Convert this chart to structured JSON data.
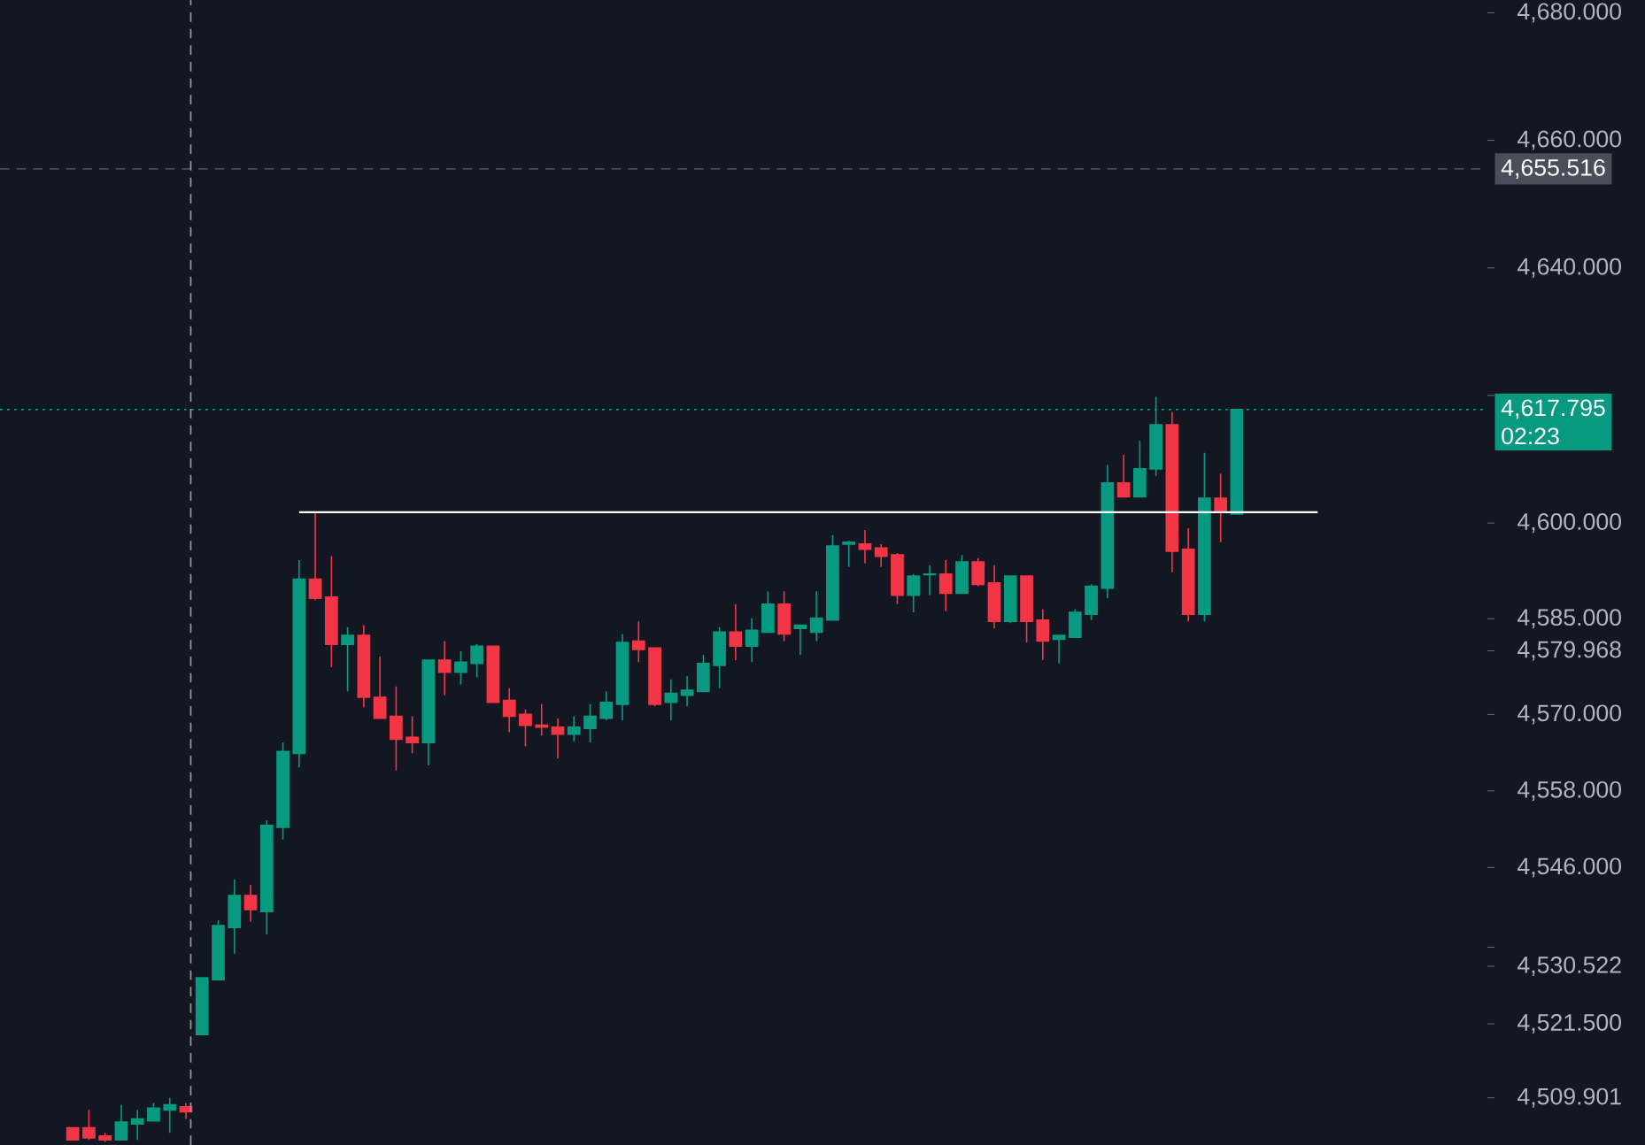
{
  "chart_data": {
    "type": "candlestick",
    "categories": [
      null,
      null,
      null,
      null,
      null,
      null,
      null,
      null,
      null,
      null,
      null,
      null,
      null,
      null,
      null,
      null,
      null,
      null,
      null,
      null,
      null,
      null,
      null,
      null,
      null,
      null,
      null,
      null,
      null,
      null,
      null,
      null,
      null,
      null,
      null,
      null,
      null,
      null,
      null,
      null,
      null,
      null,
      null,
      null,
      null,
      null,
      null,
      null,
      null,
      null,
      null,
      null,
      null,
      null,
      null,
      null,
      null,
      null,
      null,
      null,
      null,
      null,
      null,
      null,
      null,
      null,
      null,
      null,
      null,
      null,
      null,
      null,
      null,
      null,
      null,
      null,
      null,
      null,
      null,
      null,
      null,
      null,
      null,
      null,
      null,
      null,
      null,
      null,
      null,
      null,
      null,
      null
    ],
    "ohlc": [
      null,
      null,
      null,
      null,
      [
        4505.2,
        4505.2,
        4503.3,
        4503.3
      ],
      [
        4505.2,
        4508.0,
        4503.3,
        4503.6
      ],
      [
        4503.9,
        4504.4,
        4503.0,
        4503.3
      ],
      [
        4503.3,
        4508.8,
        4503.3,
        4506.1
      ],
      [
        4505.8,
        4508.0,
        4503.3,
        4506.6
      ],
      [
        4506.3,
        4509.1,
        4506.3,
        4508.3
      ],
      [
        4508.0,
        4509.9,
        4504.4,
        4508.8
      ],
      [
        4508.5,
        4509.1,
        4506.6,
        4507.7
      ],
      [
        4519.8,
        4528.7,
        4519.8,
        4528.7
      ],
      [
        4528.4,
        4537.7,
        4528.4,
        4536.9
      ],
      [
        4536.6,
        4544.1,
        4532.5,
        4541.6
      ],
      [
        4541.6,
        4543.3,
        4537.5,
        4539.4
      ],
      [
        4539.1,
        4553.4,
        4535.5,
        4552.6
      ],
      [
        4552.3,
        4565.6,
        4550.4,
        4564.2
      ],
      [
        4563.9,
        4594.2,
        4561.7,
        4591.2
      ],
      [
        4591.2,
        4601.7,
        4587.9,
        4588.2
      ],
      [
        4588.4,
        4594.8,
        4577.4,
        4581.0
      ],
      [
        4581.0,
        4583.7,
        4573.6,
        4582.4
      ],
      [
        4582.4,
        4584.0,
        4571.1,
        4572.7
      ],
      [
        4572.7,
        4579.1,
        4569.4,
        4569.4
      ],
      [
        4569.7,
        4574.4,
        4561.2,
        4566.1
      ],
      [
        4566.4,
        4569.7,
        4563.9,
        4565.6
      ],
      [
        4565.6,
        4578.5,
        4562.0,
        4578.5
      ],
      [
        4578.5,
        4581.5,
        4573.0,
        4576.6
      ],
      [
        4576.6,
        4579.9,
        4574.7,
        4578.2
      ],
      [
        4578.0,
        4581.0,
        4575.8,
        4580.7
      ],
      [
        4580.7,
        4580.7,
        4571.9,
        4571.9
      ],
      [
        4572.2,
        4574.1,
        4567.2,
        4569.7
      ],
      [
        4570.0,
        4570.8,
        4565.0,
        4568.3
      ],
      [
        4568.3,
        4571.6,
        4566.7,
        4568.0
      ],
      [
        4568.0,
        4569.4,
        4563.1,
        4566.9
      ],
      [
        4566.9,
        4569.7,
        4565.8,
        4568.0
      ],
      [
        4567.8,
        4571.6,
        4565.6,
        4569.7
      ],
      [
        4569.4,
        4573.6,
        4569.1,
        4571.9
      ],
      [
        4571.6,
        4582.6,
        4569.1,
        4581.3
      ],
      [
        4581.5,
        4584.6,
        4578.2,
        4580.2
      ],
      [
        4580.4,
        4580.4,
        4571.3,
        4571.6
      ],
      [
        4571.9,
        4575.5,
        4569.1,
        4573.3
      ],
      [
        4573.0,
        4576.0,
        4571.3,
        4573.8
      ],
      [
        4573.6,
        4579.3,
        4573.6,
        4578.0
      ],
      [
        4577.7,
        4583.7,
        4574.1,
        4582.9
      ],
      [
        4582.9,
        4587.3,
        4578.5,
        4580.7
      ],
      [
        4580.7,
        4585.1,
        4578.2,
        4583.2
      ],
      [
        4582.9,
        4589.3,
        4582.9,
        4587.3
      ],
      [
        4587.3,
        4589.3,
        4581.5,
        4582.6
      ],
      [
        4583.5,
        4584.0,
        4579.3,
        4584.0
      ],
      [
        4582.9,
        4589.3,
        4581.5,
        4585.1
      ],
      [
        4584.8,
        4598.1,
        4584.8,
        4596.4
      ],
      [
        4596.7,
        4597.2,
        4593.1,
        4597.0
      ],
      [
        4596.7,
        4598.9,
        4593.7,
        4595.9
      ],
      [
        4596.1,
        4596.7,
        4593.1,
        4594.8
      ],
      [
        4595.0,
        4595.3,
        4587.3,
        4588.7
      ],
      [
        4588.7,
        4592.0,
        4586.0,
        4591.7
      ],
      [
        4591.9,
        4593.4,
        4588.7,
        4592.0
      ],
      [
        4592.0,
        4594.2,
        4586.2,
        4589.0
      ],
      [
        4589.0,
        4595.0,
        4589.0,
        4593.9
      ],
      [
        4593.9,
        4594.5,
        4590.1,
        4590.4
      ],
      [
        4590.6,
        4593.4,
        4583.5,
        4584.6
      ],
      [
        4584.6,
        4591.7,
        4584.3,
        4591.7
      ],
      [
        4591.7,
        4591.7,
        4581.3,
        4584.6
      ],
      [
        4584.8,
        4586.5,
        4578.5,
        4581.5
      ],
      [
        4581.8,
        4582.4,
        4578.0,
        4582.4
      ],
      [
        4582.1,
        4586.5,
        4582.1,
        4586.0
      ],
      [
        4585.7,
        4590.4,
        4584.8,
        4590.1
      ],
      [
        4589.8,
        4609.1,
        4588.2,
        4606.3
      ],
      [
        4606.3,
        4610.7,
        4604.1,
        4604.1
      ],
      [
        4604.1,
        4612.9,
        4604.1,
        4608.5
      ],
      [
        4608.5,
        4619.8,
        4607.4,
        4615.4
      ],
      [
        4615.4,
        4617.4,
        4592.3,
        4595.6
      ],
      [
        4595.9,
        4599.2,
        4584.6,
        4585.7
      ],
      [
        4585.7,
        4611.0,
        4584.6,
        4603.9
      ],
      [
        4603.9,
        4607.7,
        4597.0,
        4601.7
      ],
      [
        4601.4,
        4617.795,
        4601.4,
        4617.795
      ],
      null,
      null,
      null,
      null,
      null,
      null,
      null,
      null,
      null,
      null,
      null,
      null,
      null,
      null,
      null
    ],
    "series": [
      {
        "type": "line",
        "color": "#ffffff",
        "values": [
          null,
          null,
          null,
          null,
          null,
          null,
          null,
          null,
          null,
          null,
          null,
          null,
          null,
          null,
          null,
          null,
          null,
          null,
          4601.7,
          4601.7,
          4601.7,
          4601.7,
          4601.7,
          4601.7,
          4601.7,
          4601.7,
          4601.7,
          4601.7,
          4601.7,
          4601.7,
          4601.7,
          4601.7,
          4601.7,
          4601.7,
          4601.7,
          4601.7,
          4601.7,
          4601.7,
          4601.7,
          4601.7,
          4601.7,
          4601.7,
          4601.7,
          4601.7,
          4601.7,
          4601.7,
          4601.7,
          4601.7,
          4601.7,
          4601.7,
          4601.7,
          4601.7,
          4601.7,
          4601.7,
          4601.7,
          4601.7,
          4601.7,
          4601.7,
          4601.7,
          4601.7,
          4601.7,
          4601.7,
          4601.7,
          4601.7,
          4601.7,
          4601.7,
          4601.7,
          4601.7,
          4601.7,
          4601.7,
          4601.7,
          4601.7,
          4601.7,
          4601.7,
          4601.7,
          4601.7,
          4601.7,
          4601.7,
          4601.7,
          4601.7,
          4601.7,
          4601.7,
          null,
          null,
          null,
          null,
          null,
          null,
          null,
          null,
          null,
          null
        ]
      }
    ],
    "ylim": [
      4502.5,
      4682
    ],
    "yticks": [
      {
        "value": 4680,
        "label": "4,680.000"
      },
      {
        "value": 4660,
        "label": "4,660.000"
      },
      {
        "value": 4640,
        "label": "4,640.000"
      },
      {
        "value": 4620,
        "label": null
      },
      {
        "value": 4600,
        "label": "4,600.000"
      },
      {
        "value": 4585,
        "label": "4,585.000"
      },
      {
        "value": 4579.968,
        "label": "4,579.968"
      },
      {
        "value": 4570,
        "label": "4,570.000"
      },
      {
        "value": 4558,
        "label": "4,558.000"
      },
      {
        "value": 4546,
        "label": "4,546.000"
      },
      {
        "value": 4533.5,
        "label": null
      },
      {
        "value": 4530.522,
        "label": "4,530.522"
      },
      {
        "value": 4521.5,
        "label": "4,521.500"
      },
      {
        "value": 4509.901,
        "label": "4,509.901"
      }
    ],
    "ref_lines": [
      {
        "axis": "y",
        "value": 4655.516,
        "label": "4,655.516",
        "color": "#4a4e59",
        "line_style": "dashed"
      },
      {
        "axis": "y",
        "value": 4617.795,
        "label": "4,617.795",
        "color": "#089981",
        "line_style": "dotted"
      }
    ],
    "annotations": [
      "02:23"
    ],
    "tick_labels": "y",
    "grid": false
  }
}
